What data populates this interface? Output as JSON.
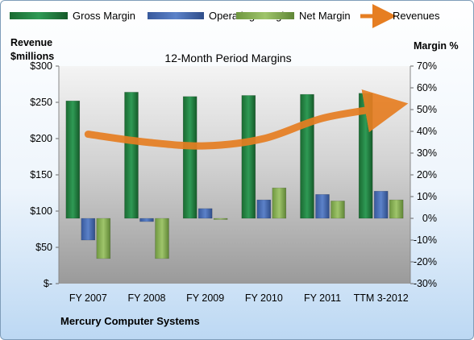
{
  "chart_data": {
    "type": "bar",
    "title": "12-Month Period Margins",
    "company": "Mercury Computer Systems",
    "left_axis_label": [
      "Revenue",
      "$millions"
    ],
    "right_axis_label": "Margin %",
    "categories": [
      "FY 2007",
      "FY 2008",
      "FY 2009",
      "FY 2010",
      "FY 2011",
      "TTM 3-2012"
    ],
    "left_ticks": [
      "$300",
      "$250",
      "$200",
      "$150",
      "$100",
      "$50",
      "$-"
    ],
    "right_ticks": [
      "70%",
      "60%",
      "50%",
      "40%",
      "30%",
      "20%",
      "10%",
      "0%",
      "-10%",
      "-20%",
      "-30%"
    ],
    "revenue_range": [
      0,
      300
    ],
    "margin_range": [
      -30,
      70
    ],
    "series": [
      {
        "name": "Gross Margin",
        "color": "#217a3c",
        "values": [
          54,
          58,
          56,
          56.5,
          57,
          57.5
        ]
      },
      {
        "name": "Operating Margin",
        "color": "#4a6db5",
        "values": [
          -10,
          -1.5,
          4.5,
          8.5,
          11,
          12.5
        ]
      },
      {
        "name": "Net Margin",
        "color": "#8cb35a",
        "values": [
          -18.5,
          -18.5,
          -0.5,
          14,
          8,
          8.5
        ]
      }
    ],
    "revenues": {
      "name": "Revenues",
      "color": "#e67e22",
      "values": [
        206,
        195,
        190,
        200,
        228,
        242
      ]
    },
    "legend_position": "top"
  }
}
